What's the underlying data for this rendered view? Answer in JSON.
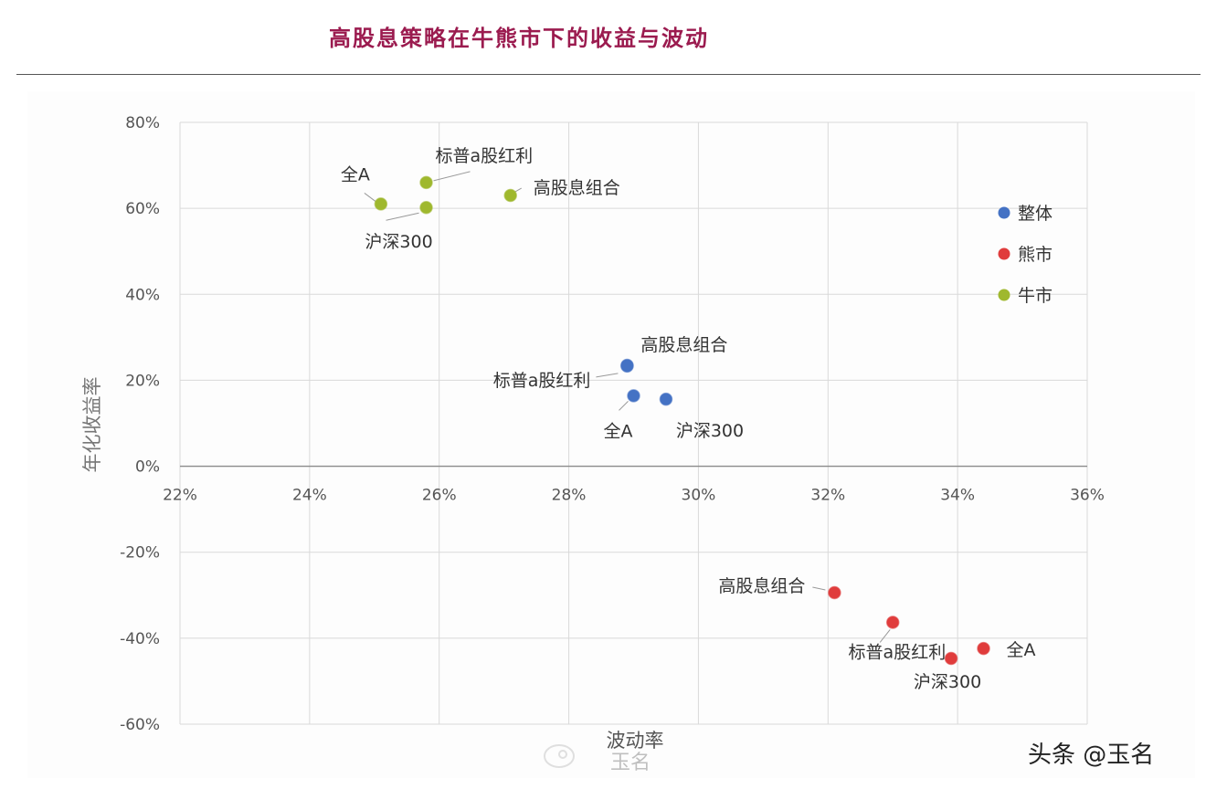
{
  "title": "高股息策略在牛熊市下的收益与波动",
  "footer": "头条 @玉名",
  "chart_data": {
    "type": "scatter",
    "title": "高股息策略在牛熊市下的收益与波动",
    "xlabel": "波动率",
    "ylabel": "年化收益率",
    "xlim": [
      22,
      36
    ],
    "ylim": [
      -60,
      80
    ],
    "xticks": [
      "22%",
      "24%",
      "26%",
      "28%",
      "30%",
      "32%",
      "34%",
      "36%"
    ],
    "yticks": [
      "80%",
      "60%",
      "40%",
      "20%",
      "0%",
      "-20%",
      "-40%",
      "-60%"
    ],
    "grid": true,
    "legend_position": "right",
    "series": [
      {
        "name": "整体",
        "color": "#4472c4",
        "points": [
          {
            "label": "高股息组合",
            "x": 28.9,
            "y": 23.5
          },
          {
            "label": "标普a股红利",
            "x": 28.9,
            "y": 23.3
          },
          {
            "label": "全A",
            "x": 29.0,
            "y": 16.4
          },
          {
            "label": "沪深300",
            "x": 29.5,
            "y": 15.6
          }
        ]
      },
      {
        "name": "熊市",
        "color": "#e03c3c",
        "points": [
          {
            "label": "高股息组合",
            "x": 32.1,
            "y": -29.4
          },
          {
            "label": "标普a股红利",
            "x": 33.0,
            "y": -36.3
          },
          {
            "label": "全A",
            "x": 34.4,
            "y": -42.4
          },
          {
            "label": "沪深300",
            "x": 33.9,
            "y": -44.7
          }
        ]
      },
      {
        "name": "牛市",
        "color": "#9fb82e",
        "points": [
          {
            "label": "标普a股红利",
            "x": 25.8,
            "y": 66.0
          },
          {
            "label": "全A",
            "x": 25.1,
            "y": 61.0
          },
          {
            "label": "高股息组合",
            "x": 27.1,
            "y": 63.0
          },
          {
            "label": "沪深300",
            "x": 25.8,
            "y": 60.2
          }
        ]
      }
    ]
  },
  "watermark": {
    "text": "玉名"
  }
}
